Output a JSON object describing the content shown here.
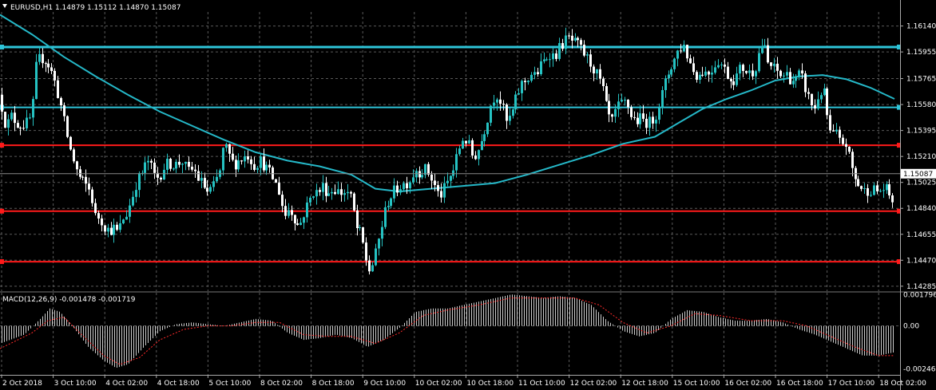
{
  "header": {
    "symbol_line": "EURUSD,H1  1.14879 1.15112 1.14870 1.15087",
    "macd_line": "MACD(12,26,9) -0.001478 -0.001719"
  },
  "colors": {
    "background": "#000000",
    "grid": "#5a5a5a",
    "bull": "#25c2c2",
    "bear": "#ffffff",
    "ma": "#25b8c8",
    "resistance": "#2ec4d8",
    "support": "#ff1a1a",
    "signal": "#ff2a2a",
    "hist": "#cccccc"
  },
  "chart_data": [
    {
      "type": "candlestick",
      "symbol": "EURUSD",
      "timeframe": "H1",
      "ylim": [
        1.1425,
        1.1624
      ],
      "y_ticks": [
        "1.16140",
        "1.15955",
        "1.15765",
        "1.15580",
        "1.15395",
        "1.15210",
        "1.15025",
        "1.14840",
        "1.14655",
        "1.14470",
        "1.14285"
      ],
      "current_price": "1.15087",
      "x_ticks": [
        "2 Oct 2018",
        "3 Oct 10:00",
        "4 Oct 02:00",
        "4 Oct 18:00",
        "5 Oct 10:00",
        "8 Oct 02:00",
        "8 Oct 18:00",
        "9 Oct 10:00",
        "10 Oct 02:00",
        "10 Oct 18:00",
        "11 Oct 10:00",
        "12 Oct 02:00",
        "12 Oct 18:00",
        "15 Oct 10:00",
        "16 Oct 02:00",
        "16 Oct 18:00",
        "17 Oct 10:00",
        "18 Oct 02:00"
      ],
      "horizontal_lines": [
        {
          "price": 1.1599,
          "color": "resistance",
          "width": 3
        },
        {
          "price": 1.1556,
          "color": "resistance",
          "width": 2
        },
        {
          "price": 1.1529,
          "color": "support",
          "width": 2
        },
        {
          "price": 1.1482,
          "color": "support",
          "width": 2
        },
        {
          "price": 1.1446,
          "color": "support",
          "width": 2
        }
      ],
      "close_path": [
        [
          0,
          1.1565
        ],
        [
          4,
          1.1548
        ],
        [
          8,
          1.1543
        ],
        [
          14,
          1.155
        ],
        [
          20,
          1.1545
        ],
        [
          27,
          1.1543
        ],
        [
          34,
          1.1545
        ],
        [
          40,
          1.155
        ],
        [
          44,
          1.1583
        ],
        [
          50,
          1.1592
        ],
        [
          56,
          1.159
        ],
        [
          62,
          1.1585
        ],
        [
          68,
          1.1575
        ],
        [
          75,
          1.156
        ],
        [
          82,
          1.154
        ],
        [
          88,
          1.1525
        ],
        [
          95,
          1.1512
        ],
        [
          100,
          1.1505
        ],
        [
          108,
          1.15
        ],
        [
          114,
          1.1495
        ],
        [
          118,
          1.1478
        ],
        [
          124,
          1.1478
        ],
        [
          130,
          1.1472
        ],
        [
          136,
          1.1468
        ],
        [
          142,
          1.147
        ],
        [
          148,
          1.1466
        ],
        [
          152,
          1.1475
        ],
        [
          158,
          1.148
        ],
        [
          164,
          1.149
        ],
        [
          170,
          1.1502
        ],
        [
          178,
          1.151
        ],
        [
          185,
          1.1518
        ],
        [
          190,
          1.1512
        ],
        [
          195,
          1.1505
        ],
        [
          200,
          1.1508
        ],
        [
          206,
          1.1515
        ],
        [
          212,
          1.1516
        ],
        [
          220,
          1.1515
        ],
        [
          228,
          1.1518
        ],
        [
          235,
          1.151
        ],
        [
          242,
          1.1512
        ],
        [
          248,
          1.1505
        ],
        [
          255,
          1.15
        ],
        [
          260,
          1.1495
        ],
        [
          268,
          1.15
        ],
        [
          276,
          1.1512
        ],
        [
          280,
          1.153
        ],
        [
          286,
          1.1522
        ],
        [
          292,
          1.1515
        ],
        [
          298,
          1.1518
        ],
        [
          304,
          1.152
        ],
        [
          310,
          1.1522
        ],
        [
          318,
          1.1515
        ],
        [
          326,
          1.1518
        ],
        [
          334,
          1.1512
        ],
        [
          342,
          1.1505
        ],
        [
          350,
          1.1495
        ],
        [
          356,
          1.1478
        ],
        [
          362,
          1.1485
        ],
        [
          368,
          1.1478
        ],
        [
          374,
          1.147
        ],
        [
          380,
          1.148
        ],
        [
          386,
          1.1488
        ],
        [
          392,
          1.1496
        ],
        [
          398,
          1.1495
        ],
        [
          404,
          1.15
        ],
        [
          410,
          1.1495
        ],
        [
          418,
          1.1498
        ],
        [
          426,
          1.1495
        ],
        [
          434,
          1.1496
        ],
        [
          440,
          1.149
        ],
        [
          446,
          1.147
        ],
        [
          452,
          1.1465
        ],
        [
          458,
          1.1448
        ],
        [
          462,
          1.144
        ],
        [
          468,
          1.1446
        ],
        [
          474,
          1.1462
        ],
        [
          480,
          1.1478
        ],
        [
          486,
          1.149
        ],
        [
          492,
          1.1495
        ],
        [
          500,
          1.15
        ],
        [
          508,
          1.1502
        ],
        [
          514,
          1.1505
        ],
        [
          520,
          1.1512
        ],
        [
          526,
          1.151
        ],
        [
          532,
          1.1512
        ],
        [
          538,
          1.1508
        ],
        [
          544,
          1.15
        ],
        [
          550,
          1.1492
        ],
        [
          556,
          1.1498
        ],
        [
          562,
          1.1505
        ],
        [
          568,
          1.1512
        ],
        [
          574,
          1.1525
        ],
        [
          580,
          1.1535
        ],
        [
          586,
          1.153
        ],
        [
          592,
          1.152
        ],
        [
          598,
          1.1525
        ],
        [
          604,
          1.1535
        ],
        [
          610,
          1.1548
        ],
        [
          616,
          1.1562
        ],
        [
          622,
          1.1565
        ],
        [
          628,
          1.1558
        ],
        [
          634,
          1.1545
        ],
        [
          640,
          1.155
        ],
        [
          646,
          1.1562
        ],
        [
          652,
          1.1572
        ],
        [
          658,
          1.1575
        ],
        [
          664,
          1.158
        ],
        [
          670,
          1.1578
        ],
        [
          676,
          1.1585
        ],
        [
          682,
          1.159
        ],
        [
          688,
          1.1595
        ],
        [
          694,
          1.1592
        ],
        [
          700,
          1.1598
        ],
        [
          706,
          1.1603
        ],
        [
          712,
          1.1605
        ],
        [
          718,
          1.1602
        ],
        [
          724,
          1.16
        ],
        [
          730,
          1.1595
        ],
        [
          736,
          1.159
        ],
        [
          742,
          1.1585
        ],
        [
          748,
          1.1578
        ],
        [
          754,
          1.157
        ],
        [
          760,
          1.1552
        ],
        [
          766,
          1.1545
        ],
        [
          772,
          1.1555
        ],
        [
          778,
          1.1558
        ],
        [
          784,
          1.156
        ],
        [
          790,
          1.155
        ],
        [
          796,
          1.1546
        ],
        [
          802,
          1.1548
        ],
        [
          808,
          1.1546
        ],
        [
          814,
          1.1545
        ],
        [
          820,
          1.155
        ],
        [
          826,
          1.156
        ],
        [
          832,
          1.1572
        ],
        [
          838,
          1.1583
        ],
        [
          844,
          1.159
        ],
        [
          850,
          1.1598
        ],
        [
          856,
          1.16
        ],
        [
          862,
          1.159
        ],
        [
          868,
          1.1582
        ],
        [
          874,
          1.1578
        ],
        [
          880,
          1.1582
        ],
        [
          886,
          1.158
        ],
        [
          892,
          1.1584
        ],
        [
          898,
          1.159
        ],
        [
          904,
          1.1586
        ],
        [
          910,
          1.158
        ],
        [
          916,
          1.1575
        ],
        [
          922,
          1.1578
        ],
        [
          928,
          1.1585
        ],
        [
          934,
          1.1582
        ],
        [
          940,
          1.158
        ],
        [
          946,
          1.1586
        ],
        [
          952,
          1.16
        ],
        [
          956,
          1.1602
        ],
        [
          960,
          1.1588
        ],
        [
          966,
          1.1585
        ],
        [
          972,
          1.1582
        ],
        [
          978,
          1.1578
        ],
        [
          984,
          1.158
        ],
        [
          990,
          1.1576
        ],
        [
          996,
          1.1575
        ],
        [
          1002,
          1.158
        ],
        [
          1008,
          1.157
        ],
        [
          1014,
          1.156
        ],
        [
          1020,
          1.1555
        ],
        [
          1026,
          1.1568
        ],
        [
          1032,
          1.1565
        ],
        [
          1036,
          1.1548
        ],
        [
          1040,
          1.1535
        ],
        [
          1046,
          1.1538
        ],
        [
          1052,
          1.153
        ],
        [
          1058,
          1.1532
        ],
        [
          1064,
          1.1518
        ],
        [
          1070,
          1.1505
        ],
        [
          1076,
          1.15
        ],
        [
          1082,
          1.1496
        ],
        [
          1088,
          1.1498
        ],
        [
          1094,
          1.1497
        ],
        [
          1100,
          1.1496
        ],
        [
          1106,
          1.1498
        ],
        [
          1112,
          1.1496
        ],
        [
          1117,
          1.1487
        ],
        [
          1120,
          1.1509
        ]
      ],
      "ma_path": [
        [
          0,
          1.1622
        ],
        [
          40,
          1.1608
        ],
        [
          80,
          1.1592
        ],
        [
          120,
          1.1578
        ],
        [
          160,
          1.1565
        ],
        [
          200,
          1.1553
        ],
        [
          240,
          1.1543
        ],
        [
          280,
          1.1533
        ],
        [
          320,
          1.1524
        ],
        [
          360,
          1.1518
        ],
        [
          400,
          1.1514
        ],
        [
          440,
          1.1508
        ],
        [
          470,
          1.1498
        ],
        [
          500,
          1.1496
        ],
        [
          540,
          1.1498
        ],
        [
          580,
          1.15
        ],
        [
          620,
          1.1502
        ],
        [
          660,
          1.1508
        ],
        [
          700,
          1.1515
        ],
        [
          740,
          1.1522
        ],
        [
          780,
          1.153
        ],
        [
          820,
          1.1535
        ],
        [
          850,
          1.1545
        ],
        [
          880,
          1.1555
        ],
        [
          910,
          1.1562
        ],
        [
          940,
          1.1568
        ],
        [
          970,
          1.1575
        ],
        [
          1000,
          1.1578
        ],
        [
          1030,
          1.1579
        ],
        [
          1060,
          1.1576
        ],
        [
          1090,
          1.157
        ],
        [
          1120,
          1.1562
        ]
      ]
    },
    {
      "type": "macd",
      "params": "MACD(12,26,9)",
      "macd_value": "-0.001478",
      "signal_value": "-0.001719",
      "ylim": [
        -0.0028,
        0.0019
      ],
      "y_ticks": [
        "0.001796",
        "0.00",
        "-0.002462"
      ],
      "hist_path": [
        [
          0,
          -0.001
        ],
        [
          30,
          -0.0005
        ],
        [
          50,
          0.0004
        ],
        [
          62,
          0.001
        ],
        [
          75,
          0.0008
        ],
        [
          90,
          0.0
        ],
        [
          110,
          -0.0012
        ],
        [
          130,
          -0.002
        ],
        [
          145,
          -0.0024
        ],
        [
          160,
          -0.0022
        ],
        [
          180,
          -0.0012
        ],
        [
          200,
          -0.0003
        ],
        [
          220,
          0.0001
        ],
        [
          240,
          0.0002
        ],
        [
          260,
          0.0001
        ],
        [
          280,
          0.0
        ],
        [
          300,
          0.0002
        ],
        [
          320,
          0.0004
        ],
        [
          340,
          0.0003
        ],
        [
          360,
          -0.0004
        ],
        [
          380,
          -0.0008
        ],
        [
          400,
          -0.0007
        ],
        [
          420,
          -0.0005
        ],
        [
          440,
          -0.0007
        ],
        [
          460,
          -0.0012
        ],
        [
          480,
          -0.0008
        ],
        [
          500,
          -0.0001
        ],
        [
          520,
          0.0008
        ],
        [
          540,
          0.001
        ],
        [
          560,
          0.001
        ],
        [
          580,
          0.0012
        ],
        [
          600,
          0.0014
        ],
        [
          620,
          0.0016
        ],
        [
          640,
          0.0018
        ],
        [
          660,
          0.0017
        ],
        [
          680,
          0.0016
        ],
        [
          700,
          0.0017
        ],
        [
          720,
          0.0016
        ],
        [
          740,
          0.0012
        ],
        [
          760,
          0.0003
        ],
        [
          780,
          -0.0003
        ],
        [
          800,
          -0.0006
        ],
        [
          820,
          -0.0004
        ],
        [
          840,
          0.0004
        ],
        [
          860,
          0.0009
        ],
        [
          880,
          0.0008
        ],
        [
          900,
          0.0005
        ],
        [
          920,
          0.0003
        ],
        [
          940,
          0.0003
        ],
        [
          960,
          0.0004
        ],
        [
          980,
          0.0002
        ],
        [
          1000,
          -0.0002
        ],
        [
          1020,
          -0.0005
        ],
        [
          1040,
          -0.0009
        ],
        [
          1060,
          -0.0013
        ],
        [
          1080,
          -0.0017
        ],
        [
          1100,
          -0.0017
        ],
        [
          1120,
          -0.0015
        ]
      ],
      "signal_path": [
        [
          0,
          -0.0013
        ],
        [
          40,
          -0.0004
        ],
        [
          60,
          0.0003
        ],
        [
          80,
          0.0005
        ],
        [
          100,
          -0.0004
        ],
        [
          130,
          -0.0017
        ],
        [
          150,
          -0.0022
        ],
        [
          175,
          -0.0018
        ],
        [
          200,
          -0.0008
        ],
        [
          230,
          -0.0002
        ],
        [
          260,
          0.0
        ],
        [
          290,
          0.0
        ],
        [
          320,
          0.0002
        ],
        [
          350,
          0.0002
        ],
        [
          380,
          -0.0005
        ],
        [
          410,
          -0.0006
        ],
        [
          440,
          -0.0006
        ],
        [
          470,
          -0.001
        ],
        [
          500,
          -0.0004
        ],
        [
          530,
          0.0006
        ],
        [
          560,
          0.0009
        ],
        [
          600,
          0.0012
        ],
        [
          640,
          0.0016
        ],
        [
          680,
          0.0016
        ],
        [
          720,
          0.0016
        ],
        [
          750,
          0.0012
        ],
        [
          780,
          0.0002
        ],
        [
          810,
          -0.0004
        ],
        [
          840,
          0.0
        ],
        [
          870,
          0.0007
        ],
        [
          900,
          0.0006
        ],
        [
          940,
          0.0003
        ],
        [
          980,
          0.0003
        ],
        [
          1010,
          0.0
        ],
        [
          1040,
          -0.0006
        ],
        [
          1070,
          -0.0012
        ],
        [
          1100,
          -0.0017
        ],
        [
          1120,
          -0.0017
        ]
      ]
    }
  ]
}
